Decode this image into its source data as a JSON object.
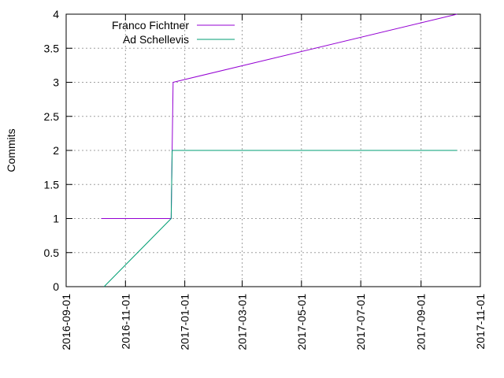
{
  "chart_data": {
    "type": "line",
    "y_label": "Commits",
    "xlim": [
      "2016-09-01",
      "2017-11-01"
    ],
    "xticks": [
      "2016-09-01",
      "2016-11-01",
      "2017-01-01",
      "2017-03-01",
      "2017-05-01",
      "2017-07-01",
      "2017-09-01",
      "2017-11-01"
    ],
    "ylim": [
      0,
      4
    ],
    "yticks": [
      0,
      0.5,
      1,
      1.5,
      2,
      2.5,
      3,
      3.5,
      4
    ],
    "grid": true,
    "legend": "top-left",
    "series": [
      {
        "name": "Franco Fichtner",
        "color": "#9400d3",
        "x": [
          "2016-10-07",
          "2016-12-18",
          "2016-12-19",
          "2016-12-20",
          "2017-10-08"
        ],
        "values": [
          1,
          1,
          2,
          3,
          4
        ]
      },
      {
        "name": "Ad Schellevis",
        "color": "#009e73",
        "x": [
          "2016-10-10",
          "2016-12-18",
          "2016-12-19",
          "2017-10-08"
        ],
        "values": [
          0,
          1,
          2,
          2
        ]
      }
    ]
  }
}
